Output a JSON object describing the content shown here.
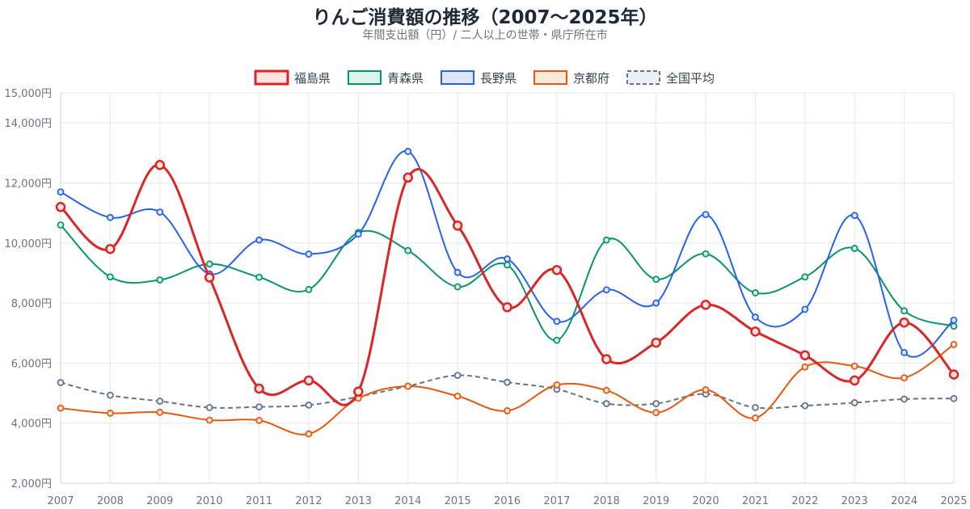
{
  "chart_data": {
    "type": "line",
    "title": "りんご消費額の推移（2007〜2025年）",
    "subtitle": "年間支出額（円）/ 二人以上の世帯・県庁所在市",
    "x": [
      "2007",
      "2008",
      "2009",
      "2010",
      "2011",
      "2012",
      "2013",
      "2014",
      "2015",
      "2016",
      "2017",
      "2018",
      "2019",
      "2020",
      "2021",
      "2022",
      "2023",
      "2024",
      "2025"
    ],
    "ylim": [
      2000,
      15000
    ],
    "yticks": [
      {
        "value": 2000,
        "label": "2,000円"
      },
      {
        "value": 4000,
        "label": "4,000円"
      },
      {
        "value": 6000,
        "label": "6,000円"
      },
      {
        "value": 8000,
        "label": "8,000円"
      },
      {
        "value": 10000,
        "label": "10,000円"
      },
      {
        "value": 12000,
        "label": "12,000円"
      },
      {
        "value": 14000,
        "label": "14,000円"
      },
      {
        "value": 15000,
        "label": "15,000円"
      }
    ],
    "grid": true,
    "legend_position": "top",
    "series": [
      {
        "name": "福島県",
        "color": "#dc2626",
        "fill": "#fde2e2",
        "bold": true,
        "dashed": false,
        "values": [
          11200,
          9800,
          12600,
          8850,
          5150,
          5420,
          5050,
          12180,
          10580,
          7860,
          9100,
          6130,
          6680,
          7940,
          7050,
          6260,
          5420,
          7350,
          5620
        ]
      },
      {
        "name": "青森県",
        "color": "#059669",
        "fill": "#dcf5ec",
        "bold": false,
        "dashed": false,
        "values": [
          10600,
          8870,
          8770,
          9300,
          8860,
          8450,
          10350,
          9750,
          8540,
          9270,
          6760,
          10100,
          8790,
          9640,
          8340,
          8870,
          9820,
          7740,
          7230
        ]
      },
      {
        "name": "長野県",
        "color": "#2563eb",
        "fill": "#dfe8fb",
        "bold": false,
        "dashed": false,
        "values": [
          11700,
          10850,
          11030,
          8970,
          10100,
          9630,
          10300,
          13050,
          9020,
          9470,
          7390,
          8440,
          8000,
          10950,
          7530,
          7790,
          10920,
          6350,
          7430
        ]
      },
      {
        "name": "京都府",
        "color": "#ea580c",
        "fill": "#fde9dc",
        "bold": false,
        "dashed": false,
        "values": [
          4500,
          4330,
          4360,
          4100,
          4090,
          3640,
          4830,
          5230,
          4900,
          4410,
          5270,
          5090,
          4350,
          5110,
          4170,
          5870,
          5900,
          5510,
          6620
        ]
      },
      {
        "name": "全国平均",
        "color": "#64748b",
        "fill": "#eceff3",
        "bold": false,
        "dashed": true,
        "values": [
          5350,
          4930,
          4730,
          4520,
          4540,
          4600,
          4880,
          5230,
          5590,
          5360,
          5130,
          4650,
          4650,
          4970,
          4520,
          4580,
          4680,
          4800,
          4820
        ]
      }
    ]
  }
}
